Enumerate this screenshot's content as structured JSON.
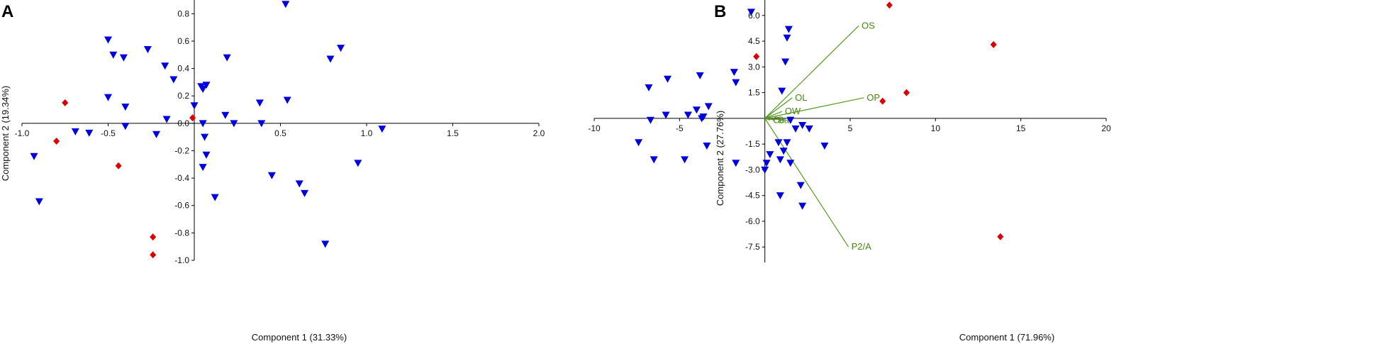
{
  "panels": [
    {
      "letter": "A",
      "chart_data": {
        "type": "scatter",
        "title": "",
        "xlabel": "Component 1 (31.33%)",
        "ylabel": "Component 2 (19.34%)",
        "xlim": [
          -1.0,
          2.0
        ],
        "ylim": [
          -1.0,
          0.9
        ],
        "x_ticks": [
          -1.0,
          -0.5,
          0.5,
          1.0,
          1.5,
          2.0
        ],
        "x_tick_labels": [
          "-1.0",
          "-0.5",
          "0.5",
          "1.0",
          "1.5",
          "2.0"
        ],
        "y_ticks": [
          0.8,
          0.6,
          0.4,
          0.2,
          0.0,
          -0.2,
          -0.4,
          -0.6,
          -0.8,
          -1.0
        ],
        "y_tick_labels": [
          "0.8",
          "0.6",
          "0.4",
          "0.2",
          "0.0",
          "-0.2",
          "-0.4",
          "-0.6",
          "-0.8",
          "-1.0"
        ],
        "grid": false,
        "colors": {
          "triangle": "#0000dd",
          "diamond": "#dd0000",
          "axis": "#000000"
        },
        "series": [
          {
            "marker": "triangle-down",
            "points": [
              [
                -0.5,
                0.61
              ],
              [
                -0.47,
                0.5
              ],
              [
                -0.41,
                0.48
              ],
              [
                -0.27,
                0.54
              ],
              [
                -0.17,
                0.42
              ],
              [
                -0.12,
                0.32
              ],
              [
                0.53,
                0.87
              ],
              [
                0.19,
                0.48
              ],
              [
                0.85,
                0.55
              ],
              [
                0.79,
                0.47
              ],
              [
                -0.5,
                0.19
              ],
              [
                -0.4,
                0.12
              ],
              [
                0.04,
                0.27
              ],
              [
                0.07,
                0.28
              ],
              [
                0.05,
                0.25
              ],
              [
                0.38,
                0.15
              ],
              [
                0.54,
                0.17
              ],
              [
                0.0,
                0.13
              ],
              [
                -0.16,
                0.03
              ],
              [
                0.18,
                0.06
              ],
              [
                0.23,
                0.0
              ],
              [
                0.39,
                0.0
              ],
              [
                0.05,
                0.0
              ],
              [
                -0.4,
                -0.02
              ],
              [
                -0.69,
                -0.06
              ],
              [
                -0.61,
                -0.07
              ],
              [
                -0.22,
                -0.08
              ],
              [
                1.09,
                -0.04
              ],
              [
                0.06,
                -0.1
              ],
              [
                -0.93,
                -0.24
              ],
              [
                0.07,
                -0.23
              ],
              [
                0.05,
                -0.32
              ],
              [
                0.45,
                -0.38
              ],
              [
                0.95,
                -0.29
              ],
              [
                0.61,
                -0.44
              ],
              [
                0.64,
                -0.51
              ],
              [
                0.12,
                -0.54
              ],
              [
                -0.9,
                -0.57
              ],
              [
                0.76,
                -0.88
              ]
            ]
          },
          {
            "marker": "diamond",
            "points": [
              [
                -0.75,
                0.15
              ],
              [
                -0.01,
                0.04
              ],
              [
                -0.8,
                -0.13
              ],
              [
                -0.44,
                -0.31
              ],
              [
                -0.24,
                -0.83
              ],
              [
                -0.24,
                -0.96
              ]
            ]
          }
        ]
      }
    },
    {
      "letter": "B",
      "chart_data": {
        "type": "scatter",
        "title": "",
        "xlabel": "Component 1 (71.96%)",
        "ylabel": "Component 2 (27.76%)",
        "xlim": [
          -10,
          20
        ],
        "ylim": [
          -8.4,
          6.9
        ],
        "x_ticks": [
          -10,
          -5,
          5,
          10,
          15,
          20
        ],
        "x_tick_labels": [
          "-10",
          "-5",
          "5",
          "10",
          "15",
          "20"
        ],
        "y_ticks": [
          6.0,
          4.5,
          3.0,
          1.5,
          -1.5,
          -3.0,
          -4.5,
          -6.0,
          -7.5
        ],
        "y_tick_labels": [
          "6.0",
          "4.5",
          "3.0",
          "1.5",
          "-1.5",
          "-3.0",
          "-4.5",
          "-6.0",
          "-7.5"
        ],
        "grid": false,
        "colors": {
          "triangle": "#0000dd",
          "diamond": "#dd0000",
          "vector": "#559922",
          "vector_label": "#448811",
          "axis": "#000000"
        },
        "series": [
          {
            "marker": "triangle-down",
            "points": [
              [
                -0.8,
                6.2
              ],
              [
                1.4,
                5.2
              ],
              [
                1.3,
                4.7
              ],
              [
                1.2,
                3.3
              ],
              [
                -1.8,
                2.7
              ],
              [
                -3.8,
                2.5
              ],
              [
                -5.7,
                2.3
              ],
              [
                -1.7,
                2.1
              ],
              [
                -6.8,
                1.8
              ],
              [
                1.0,
                1.6
              ],
              [
                -3.3,
                0.7
              ],
              [
                -4.0,
                0.5
              ],
              [
                -5.8,
                0.2
              ],
              [
                -4.5,
                0.2
              ],
              [
                -3.6,
                0.1
              ],
              [
                -3.7,
                0.0
              ],
              [
                -6.7,
                -0.1
              ],
              [
                1.5,
                -0.1
              ],
              [
                2.2,
                -0.4
              ],
              [
                1.8,
                -0.6
              ],
              [
                2.6,
                -0.6
              ],
              [
                -7.4,
                -1.4
              ],
              [
                0.8,
                -1.4
              ],
              [
                1.3,
                -1.4
              ],
              [
                -3.4,
                -1.6
              ],
              [
                3.5,
                -1.6
              ],
              [
                1.1,
                -1.9
              ],
              [
                0.3,
                -2.1
              ],
              [
                -6.5,
                -2.4
              ],
              [
                -4.7,
                -2.4
              ],
              [
                -1.7,
                -2.6
              ],
              [
                0.1,
                -2.6
              ],
              [
                0.9,
                -2.4
              ],
              [
                1.5,
                -2.6
              ],
              [
                0.0,
                -3.0
              ],
              [
                2.1,
                -3.9
              ],
              [
                0.9,
                -4.5
              ],
              [
                2.2,
                -5.1
              ]
            ]
          },
          {
            "marker": "diamond",
            "points": [
              [
                7.3,
                6.6
              ],
              [
                -0.5,
                3.6
              ],
              [
                13.4,
                4.3
              ],
              [
                8.3,
                1.5
              ],
              [
                6.9,
                1.0
              ],
              [
                13.8,
                -6.9
              ]
            ]
          }
        ],
        "vectors": [
          {
            "label": "OS",
            "end": [
              5.5,
              5.4
            ]
          },
          {
            "label": "OL",
            "end": [
              1.6,
              1.2
            ]
          },
          {
            "label": "OP",
            "end": [
              5.8,
              1.2
            ]
          },
          {
            "label": "OW",
            "end": [
              1.0,
              0.4
            ]
          },
          {
            "label": "Ba",
            "end": [
              0.6,
              -0.1
            ]
          },
          {
            "label": "Ce",
            "end": [
              0.3,
              -0.1
            ]
          },
          {
            "label": "T",
            "end": [
              1.2,
              -0.1
            ]
          },
          {
            "label": "P2/A",
            "end": [
              4.9,
              -7.5
            ]
          }
        ]
      }
    }
  ]
}
